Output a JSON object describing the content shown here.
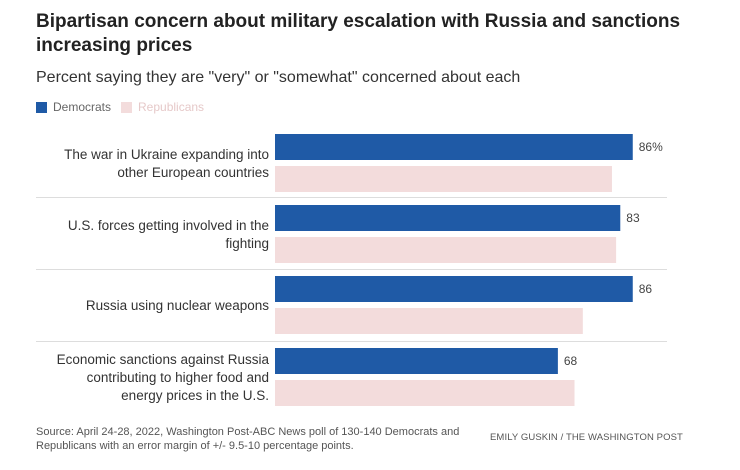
{
  "chart_data": {
    "type": "bar",
    "orientation": "horizontal",
    "title": "Bipartisan concern about military escalation with Russia and sanctions increasing prices",
    "subtitle": "Percent saying they are \"very\" or \"somewhat\" concerned about each",
    "categories": [
      [
        "The war in Ukraine expanding into",
        "other European countries"
      ],
      [
        "U.S. forces getting involved in the",
        "fighting"
      ],
      [
        "Russia using nuclear weapons"
      ],
      [
        "Economic sanctions against Russia",
        "contributing to higher food and",
        "energy prices in the U.S."
      ]
    ],
    "series": [
      {
        "name": "Democrats",
        "color": "#1f5aa6",
        "values": [
          86,
          83,
          86,
          68
        ],
        "labels": [
          "86%",
          "83",
          "86",
          "68"
        ]
      },
      {
        "name": "Republicans",
        "color": "#f3dcdc",
        "values": [
          81,
          82,
          74,
          72
        ]
      }
    ],
    "xlim": [
      0,
      100
    ],
    "grid": false,
    "legend_position": "top-left"
  },
  "footer": {
    "source": "Source: April 24-28, 2022, Washington Post-ABC News poll of 130-140 Democrats and Republicans with an error margin of +/- 9.5-10 percentage points.",
    "credit": "EMILY GUSKIN / THE WASHINGTON POST"
  }
}
